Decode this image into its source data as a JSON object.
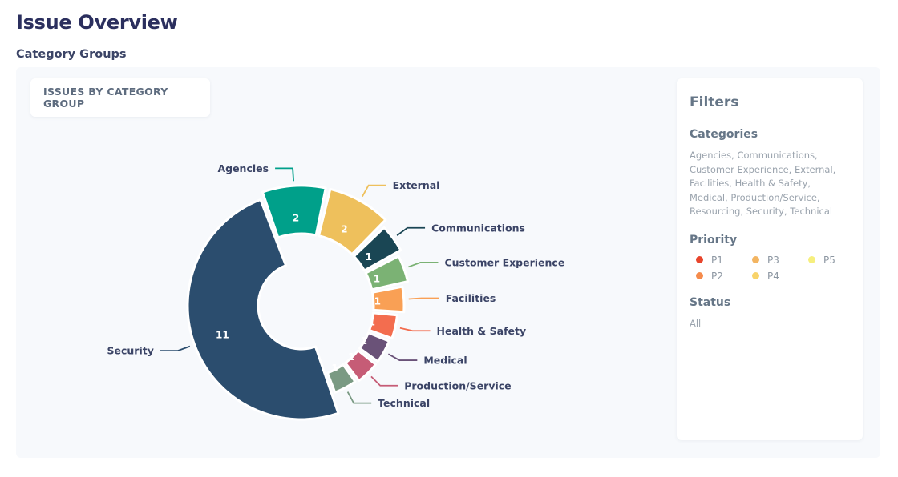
{
  "page": {
    "title": "Issue Overview",
    "section_title": "Category Groups"
  },
  "chart_card": {
    "title": "ISSUES BY CATEGORY GROUP"
  },
  "chart_data": {
    "type": "pie",
    "variant": "donut",
    "title": "ISSUES BY CATEGORY GROUP",
    "categories": [
      "Security",
      "Agencies",
      "External",
      "Communications",
      "Customer Experience",
      "Facilities",
      "Health & Safety",
      "Medical",
      "Production/Service",
      "Technical"
    ],
    "values": [
      11,
      2,
      2,
      1,
      1,
      1,
      1,
      1,
      1,
      1
    ],
    "colors": [
      "#2b4d6e",
      "#00a08a",
      "#eec05c",
      "#1a4654",
      "#7bb274",
      "#f9a055",
      "#f36d4f",
      "#6a5278",
      "#c65c76",
      "#7a9a83"
    ],
    "data_labels": [
      "11",
      "2",
      "2",
      "1",
      "1",
      "1",
      "1",
      "1",
      "1",
      "1"
    ],
    "legend": "none"
  },
  "filters": {
    "heading": "Filters",
    "categories_label": "Categories",
    "categories_value": "Agencies, Communications, Customer Experience, External, Facilities, Health & Safety, Medical, Production/Service, Resourcing, Security, Technical",
    "priority_label": "Priority",
    "priorities": [
      {
        "label": "P1",
        "color": "#e8452c"
      },
      {
        "label": "P3",
        "color": "#f3b562"
      },
      {
        "label": "P5",
        "color": "#f6ef7e"
      },
      {
        "label": "P2",
        "color": "#f58b4c"
      },
      {
        "label": "P4",
        "color": "#f8d36a"
      }
    ],
    "status_label": "Status",
    "status_value": "All"
  }
}
